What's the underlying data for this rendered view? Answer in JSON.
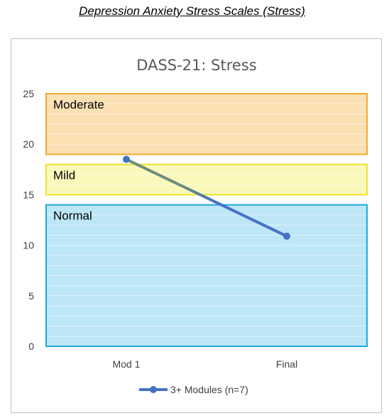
{
  "page": {
    "title": "Depression Anxiety Stress Scales (Stress)"
  },
  "chart_data": {
    "type": "line",
    "title": "DASS-21: Stress",
    "categories": [
      "Mod 1",
      "Final"
    ],
    "ylim": [
      0,
      25
    ],
    "yticks": [
      0,
      5,
      10,
      15,
      20,
      25
    ],
    "series": [
      {
        "name": "3+ Modules (n=7)",
        "values": [
          18.5,
          10.9
        ],
        "color": "#4472c4"
      }
    ],
    "bands": [
      {
        "label": "Normal",
        "from": 0,
        "to": 14,
        "fill": "#bde6f7",
        "stroke": "#1ea8d9"
      },
      {
        "label": "Mild",
        "from": 15,
        "to": 18,
        "fill": "#fbf8bb",
        "stroke": "#ece32a"
      },
      {
        "label": "Moderate",
        "from": 19,
        "to": 25,
        "fill": "#fbe0b3",
        "stroke": "#f1a92c"
      }
    ],
    "segment_colors": [
      "#6e8e7c",
      "#4472c4"
    ],
    "grid": true,
    "legend_position": "bottom"
  }
}
